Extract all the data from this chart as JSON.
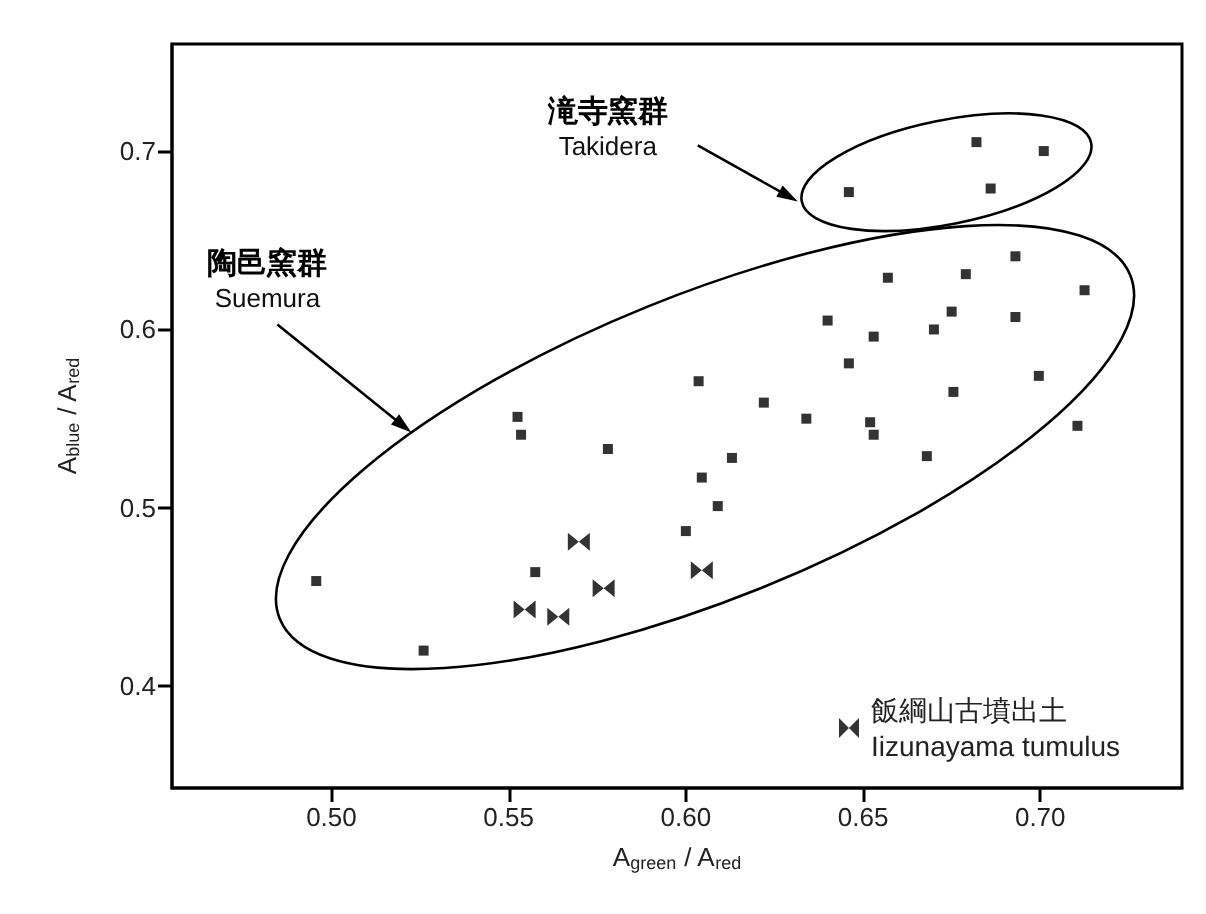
{
  "chart_data": {
    "type": "scatter",
    "xlabel": "A$_{green}$ / A$_{red}$",
    "ylabel": "A$_{blue}$ / A$_{red}$",
    "xlim": [
      0.455,
      0.74
    ],
    "ylim": [
      0.343,
      0.76
    ],
    "xticks": [
      {
        "value": 0.5,
        "label": "0.50"
      },
      0.55,
      {
        "value": 0.6,
        "label": "0.60"
      },
      0.65,
      {
        "value": 0.7,
        "label": "0.70"
      }
    ],
    "yticks": [
      0.4,
      0.5,
      0.6,
      0.7
    ],
    "grid": false,
    "legend": "bottom right",
    "annotations": [
      "滝寺窯群\nTakidera",
      "陶邑窯群\nSuemura"
    ],
    "series": [
      {
        "color": "#000000",
        "marker": "square",
        "x": [
          0.682,
          0.701,
          0.646,
          0.686
        ],
        "values": [
          0.705,
          0.7,
          0.677,
          0.679
        ]
      },
      {
        "color": "#000000",
        "marker": "square",
        "x": [
          0.693,
          0.657,
          0.679,
          0.7125,
          0.64,
          0.653,
          0.675,
          0.67,
          0.693,
          0.646,
          0.6036,
          0.622,
          0.6755,
          0.6996,
          0.634,
          0.652,
          0.653,
          0.5525,
          0.5535,
          0.7105,
          0.578,
          0.613,
          0.668,
          0.6045,
          0.609,
          0.6,
          0.5575,
          0.4957,
          0.526
        ],
        "values": [
          0.641,
          0.629,
          0.631,
          0.622,
          0.605,
          0.596,
          0.61,
          0.6,
          0.607,
          0.581,
          0.571,
          0.559,
          0.565,
          0.574,
          0.55,
          0.548,
          0.541,
          0.551,
          0.541,
          0.546,
          0.533,
          0.528,
          0.529,
          0.517,
          0.501,
          0.487,
          0.464,
          0.459,
          0.42
        ]
      },
      {
        "name": "飯綱山古墳出土\nIizunayama tumulus",
        "color": "#000000",
        "x": [
          0.5698,
          0.5545,
          0.564,
          0.5768,
          0.6045
        ],
        "values": [
          0.481,
          0.443,
          0.439,
          0.455,
          0.465
        ]
      }
    ]
  }
}
